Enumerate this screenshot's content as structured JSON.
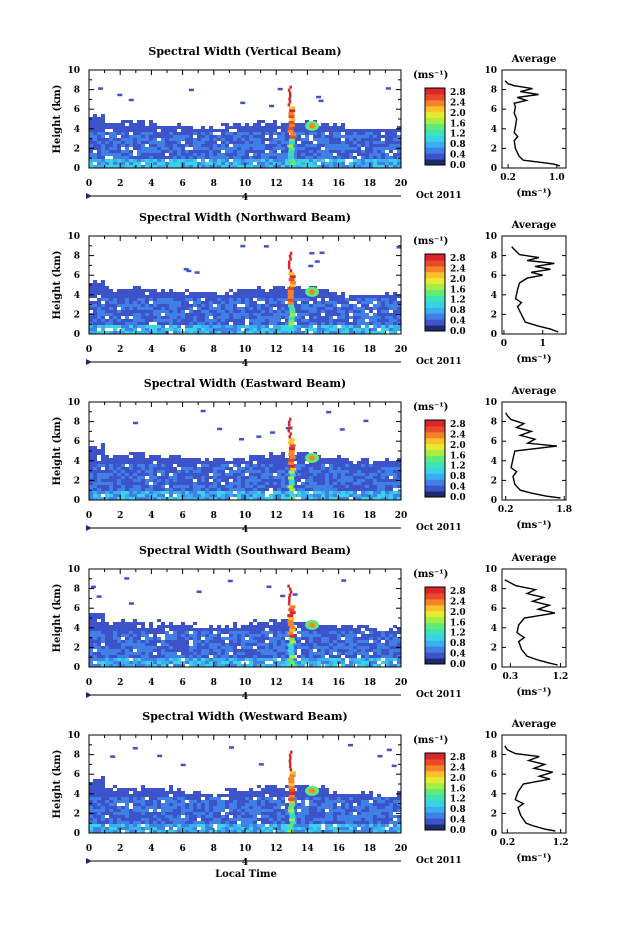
{
  "colors": {
    "ramp": [
      "#1d2b6e",
      "#3c53c9",
      "#3f7fe6",
      "#3aaef0",
      "#39d2e6",
      "#3fe2b4",
      "#62ea78",
      "#a6ee44",
      "#e6ea30",
      "#fbc02a",
      "#f6822a",
      "#e84a2a",
      "#d8262a"
    ]
  },
  "chart_data": [
    {
      "type": "heatmap",
      "title": "Spectral Width (Vertical Beam)",
      "ylabel": "Height (km)",
      "xlabel": "",
      "x_ticks": [
        "0",
        "2",
        "4",
        "6",
        "8",
        "10",
        "12",
        "14",
        "16",
        "18",
        "20"
      ],
      "y_ticks": [
        "0",
        "2",
        "4",
        "6",
        "8",
        "10"
      ],
      "xlim": [
        0,
        20
      ],
      "ylim": [
        0,
        10
      ],
      "date_label": "Oct 2011",
      "day_label": "4",
      "colorbar": {
        "unit": "(ms⁻¹)",
        "labels": [
          "2.8",
          "2.4",
          "2.0",
          "1.6",
          "1.2",
          "0.8",
          "0.4",
          "0.0"
        ]
      },
      "average": {
        "title": "Average",
        "xlabel": "(ms⁻¹)",
        "x_tick_labels": [
          "0.2",
          "1.0"
        ],
        "x_tick_values": [
          0.2,
          1.0
        ],
        "xlim": [
          0.1,
          1.15
        ],
        "y_ticks": [
          "0",
          "2",
          "4",
          "6",
          "8",
          "10"
        ],
        "profile": [
          [
            1.05,
            0.2
          ],
          [
            0.95,
            0.4
          ],
          [
            0.7,
            0.6
          ],
          [
            0.45,
            0.8
          ],
          [
            0.38,
            1.2
          ],
          [
            0.32,
            2.0
          ],
          [
            0.3,
            2.8
          ],
          [
            0.36,
            3.2
          ],
          [
            0.3,
            3.6
          ],
          [
            0.32,
            4.2
          ],
          [
            0.34,
            5.0
          ],
          [
            0.3,
            5.6
          ],
          [
            0.32,
            6.2
          ],
          [
            0.3,
            6.6
          ],
          [
            0.5,
            6.9
          ],
          [
            0.35,
            7.2
          ],
          [
            0.7,
            7.5
          ],
          [
            0.4,
            7.8
          ],
          [
            0.6,
            8.1
          ],
          [
            0.3,
            8.4
          ],
          [
            0.2,
            8.6
          ],
          [
            0.15,
            8.9
          ]
        ]
      },
      "blob_x": [
        12.9,
        14.3
      ]
    },
    {
      "type": "heatmap",
      "title": "Spectral Width (Northward Beam)",
      "ylabel": "Height (km)",
      "xlabel": "",
      "x_ticks": [
        "0",
        "2",
        "4",
        "6",
        "8",
        "10",
        "12",
        "14",
        "16",
        "18",
        "20"
      ],
      "y_ticks": [
        "0",
        "2",
        "4",
        "6",
        "8",
        "10"
      ],
      "xlim": [
        0,
        20
      ],
      "ylim": [
        0,
        10
      ],
      "date_label": "Oct 2011",
      "day_label": "4",
      "colorbar": {
        "unit": "(ms⁻¹)",
        "labels": [
          "2.8",
          "2.4",
          "2.0",
          "1.6",
          "1.2",
          "0.8",
          "0.4",
          "0.0"
        ]
      },
      "average": {
        "title": "Average",
        "xlabel": "(ms⁻¹)",
        "x_tick_labels": [
          "0",
          "1"
        ],
        "x_tick_values": [
          0,
          1
        ],
        "xlim": [
          -0.05,
          1.6
        ],
        "y_ticks": [
          "0",
          "2",
          "4",
          "6",
          "8",
          "10"
        ],
        "profile": [
          [
            1.4,
            0.2
          ],
          [
            1.2,
            0.5
          ],
          [
            0.9,
            0.8
          ],
          [
            0.55,
            1.2
          ],
          [
            0.45,
            2.0
          ],
          [
            0.35,
            2.8
          ],
          [
            0.45,
            3.2
          ],
          [
            0.3,
            3.6
          ],
          [
            0.35,
            4.5
          ],
          [
            0.4,
            5.2
          ],
          [
            0.6,
            5.7
          ],
          [
            1.0,
            6.0
          ],
          [
            0.7,
            6.3
          ],
          [
            1.2,
            6.6
          ],
          [
            0.8,
            6.9
          ],
          [
            1.3,
            7.2
          ],
          [
            0.6,
            7.5
          ],
          [
            0.9,
            7.8
          ],
          [
            0.4,
            8.1
          ],
          [
            0.3,
            8.5
          ],
          [
            0.2,
            8.9
          ]
        ]
      },
      "blob_x": [
        12.9,
        14.3
      ]
    },
    {
      "type": "heatmap",
      "title": "Spectral Width (Eastward Beam)",
      "ylabel": "Height (km)",
      "xlabel": "",
      "x_ticks": [
        "0",
        "2",
        "4",
        "6",
        "8",
        "10",
        "12",
        "14",
        "16",
        "18",
        "20"
      ],
      "y_ticks": [
        "0",
        "2",
        "4",
        "6",
        "8",
        "10"
      ],
      "xlim": [
        0,
        20
      ],
      "ylim": [
        0,
        10
      ],
      "date_label": "Oct 2011",
      "day_label": "4",
      "colorbar": {
        "unit": "(ms⁻¹)",
        "labels": [
          "2.8",
          "2.4",
          "2.0",
          "1.6",
          "1.2",
          "0.8",
          "0.4",
          "0.0"
        ]
      },
      "average": {
        "title": "Average",
        "xlabel": "(ms⁻¹)",
        "x_tick_labels": [
          "0.2",
          "1.8"
        ],
        "x_tick_values": [
          0.2,
          1.8
        ],
        "xlim": [
          0.1,
          1.85
        ],
        "y_ticks": [
          "0",
          "2",
          "4",
          "6",
          "8",
          "10"
        ],
        "profile": [
          [
            1.7,
            0.2
          ],
          [
            1.3,
            0.4
          ],
          [
            0.9,
            0.7
          ],
          [
            0.6,
            1.0
          ],
          [
            0.45,
            1.6
          ],
          [
            0.4,
            2.4
          ],
          [
            0.5,
            2.9
          ],
          [
            0.35,
            3.3
          ],
          [
            0.4,
            4.2
          ],
          [
            0.45,
            5.0
          ],
          [
            1.6,
            5.5
          ],
          [
            0.8,
            5.8
          ],
          [
            1.0,
            6.2
          ],
          [
            0.6,
            6.6
          ],
          [
            0.9,
            7.0
          ],
          [
            0.5,
            7.4
          ],
          [
            0.7,
            7.8
          ],
          [
            0.35,
            8.2
          ],
          [
            0.25,
            8.6
          ],
          [
            0.2,
            8.9
          ]
        ]
      },
      "blob_x": [
        12.9,
        14.3
      ]
    },
    {
      "type": "heatmap",
      "title": "Spectral Width (Southward Beam)",
      "ylabel": "Height (km)",
      "xlabel": "",
      "x_ticks": [
        "0",
        "2",
        "4",
        "6",
        "8",
        "10",
        "12",
        "14",
        "16",
        "18",
        "20"
      ],
      "y_ticks": [
        "0",
        "2",
        "4",
        "6",
        "8",
        "10"
      ],
      "xlim": [
        0,
        20
      ],
      "ylim": [
        0,
        10
      ],
      "date_label": "Oct 2011",
      "day_label": "4",
      "colorbar": {
        "unit": "(ms⁻¹)",
        "labels": [
          "2.8",
          "2.4",
          "2.0",
          "1.6",
          "1.2",
          "0.8",
          "0.4",
          "0.0"
        ]
      },
      "average": {
        "title": "Average",
        "xlabel": "(ms⁻¹)",
        "x_tick_labels": [
          "0.3",
          "1.2"
        ],
        "x_tick_values": [
          0.3,
          1.2
        ],
        "xlim": [
          0.15,
          1.3
        ],
        "y_ticks": [
          "0",
          "2",
          "4",
          "6",
          "8",
          "10"
        ],
        "profile": [
          [
            1.15,
            0.2
          ],
          [
            1.0,
            0.4
          ],
          [
            0.8,
            0.7
          ],
          [
            0.6,
            1.1
          ],
          [
            0.5,
            1.8
          ],
          [
            0.45,
            2.6
          ],
          [
            0.55,
            3.0
          ],
          [
            0.42,
            3.5
          ],
          [
            0.45,
            4.3
          ],
          [
            0.55,
            5.0
          ],
          [
            1.1,
            5.5
          ],
          [
            0.8,
            5.9
          ],
          [
            1.0,
            6.3
          ],
          [
            0.7,
            6.7
          ],
          [
            0.9,
            7.1
          ],
          [
            0.6,
            7.5
          ],
          [
            0.75,
            7.9
          ],
          [
            0.4,
            8.3
          ],
          [
            0.3,
            8.6
          ],
          [
            0.2,
            8.9
          ]
        ]
      },
      "blob_x": [
        12.9,
        14.3
      ]
    },
    {
      "type": "heatmap",
      "title": "Spectral Width (Westward Beam)",
      "ylabel": "Height (km)",
      "xlabel": "Local Time",
      "x_ticks": [
        "0",
        "2",
        "4",
        "6",
        "8",
        "10",
        "12",
        "14",
        "16",
        "18",
        "20"
      ],
      "y_ticks": [
        "0",
        "2",
        "4",
        "6",
        "8",
        "10"
      ],
      "xlim": [
        0,
        20
      ],
      "ylim": [
        0,
        10
      ],
      "date_label": "Oct 2011",
      "day_label": "4",
      "colorbar": {
        "unit": "(ms⁻¹)",
        "labels": [
          "2.8",
          "2.4",
          "2.0",
          "1.6",
          "1.2",
          "0.8",
          "0.4",
          "0.0"
        ]
      },
      "average": {
        "title": "Average",
        "xlabel": "(ms⁻¹)",
        "x_tick_labels": [
          "0.2",
          "1.2"
        ],
        "x_tick_values": [
          0.2,
          1.2
        ],
        "xlim": [
          0.1,
          1.3
        ],
        "y_ticks": [
          "0",
          "2",
          "4",
          "6",
          "8",
          "10"
        ],
        "profile": [
          [
            1.1,
            0.2
          ],
          [
            0.9,
            0.4
          ],
          [
            0.7,
            0.7
          ],
          [
            0.55,
            1.0
          ],
          [
            0.45,
            1.8
          ],
          [
            0.4,
            2.6
          ],
          [
            0.5,
            3.0
          ],
          [
            0.35,
            3.4
          ],
          [
            0.4,
            4.2
          ],
          [
            0.5,
            5.0
          ],
          [
            1.0,
            5.5
          ],
          [
            0.8,
            5.8
          ],
          [
            1.05,
            6.2
          ],
          [
            0.7,
            6.6
          ],
          [
            0.9,
            7.0
          ],
          [
            0.6,
            7.4
          ],
          [
            0.8,
            7.8
          ],
          [
            0.35,
            8.1
          ],
          [
            0.2,
            8.5
          ],
          [
            0.15,
            8.9
          ]
        ]
      },
      "blob_x": [
        12.9,
        14.3
      ]
    }
  ]
}
